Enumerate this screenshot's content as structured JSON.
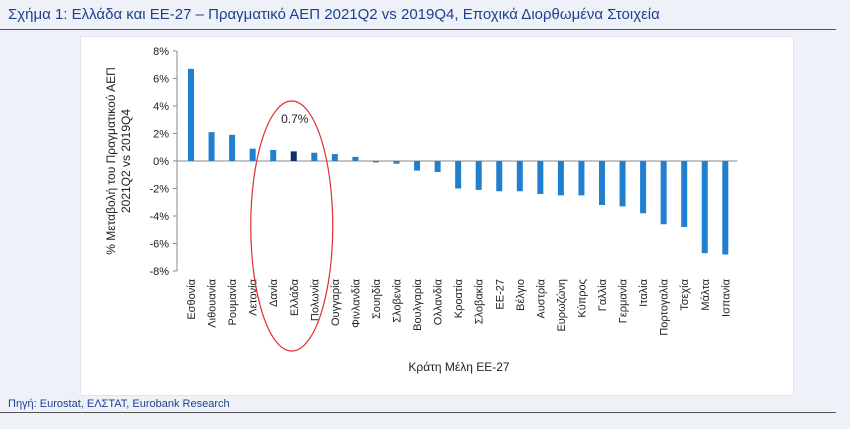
{
  "figure": {
    "title": "Σχήμα 1: Ελλάδα και ΕΕ-27 – Πραγματικό ΑΕΠ 2021Q2 vs 2019Q4, Εποχικά Διορθωμένα Στοιχεία",
    "source": "Πηγή: Eurostat, ΕΛΣΤΑΤ, Eurobank Research"
  },
  "chart_data": {
    "type": "bar",
    "title": "Σχήμα 1: Ελλάδα και ΕΕ-27 – Πραγματικό ΑΕΠ 2021Q2 vs 2019Q4, Εποχικά Διορθωμένα Στοιχεία",
    "xlabel": "Κράτη Μέλη ΕΕ-27",
    "ylabel_lines": [
      "% Μεταβολή του Πραγματικού ΑΕΠ",
      "2021Q2 vs 2019Q4"
    ],
    "ylim": [
      -8,
      8
    ],
    "yticks": [
      "8%",
      "6%",
      "4%",
      "2%",
      "0%",
      "-2%",
      "-4%",
      "-6%",
      "-8%"
    ],
    "categories": [
      "Εσθονία",
      "Λιθουανία",
      "Ρουμανία",
      "Λετονία",
      "Δανία",
      "Ελλάδα",
      "Πολωνία",
      "Ουγγαρία",
      "Φινλανδία",
      "Σουηδία",
      "Σλοβενία",
      "Βουλγαρία",
      "Ολλανδία",
      "Κροατία",
      "Σλοβακία",
      "ΕΕ-27",
      "Βέλγιο",
      "Αυστρία",
      "Ευρωζώνη",
      "Κύπρος",
      "Γαλλία",
      "Γερμανία",
      "Ιταλία",
      "Πορτογαλία",
      "Τσεχία",
      "Μάλτα",
      "Ισπανία"
    ],
    "values": [
      6.7,
      2.1,
      1.9,
      0.9,
      0.8,
      0.7,
      0.6,
      0.5,
      0.3,
      -0.1,
      -0.2,
      -0.7,
      -0.8,
      -2.0,
      -2.1,
      -2.2,
      -2.2,
      -2.4,
      -2.5,
      -2.5,
      -3.2,
      -3.3,
      -3.8,
      -4.6,
      -4.8,
      -6.7,
      -6.8
    ],
    "highlight_category": "Ελλάδα",
    "annotation": "0.7%",
    "colors": {
      "bar": "#1f7fd1",
      "highlight": "#0d2d6b",
      "ellipse": "#e0302e"
    }
  }
}
